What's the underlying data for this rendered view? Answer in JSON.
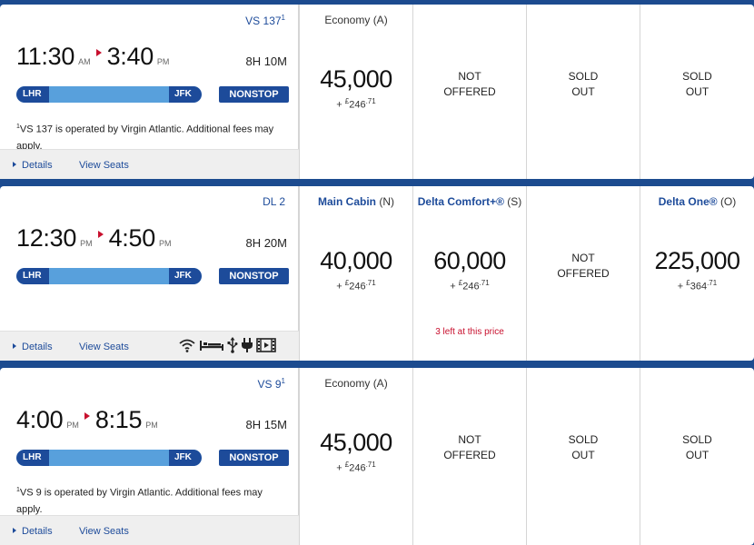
{
  "flights": [
    {
      "flight_no": "VS 137",
      "flight_no_sup": "1",
      "dep_time": "11:30",
      "dep_ampm": "AM",
      "arr_time": "3:40",
      "arr_ampm": "PM",
      "duration": "8H 10M",
      "from": "LHR",
      "to": "JFK",
      "nonstop": "NONSTOP",
      "note_sup": "1",
      "note_prefix": "VS 137 is operated by ",
      "note_carrier": "Virgin Atlantic",
      "note_suffix": ". Additional fees may apply.",
      "details": "Details",
      "view_seats": "View Seats",
      "fares": [
        {
          "name": "Economy",
          "code": "(A)",
          "miles": "45,000",
          "tax_prefix": "+ ",
          "currency": "£",
          "tax_whole": "246",
          "tax_cents": ".71"
        },
        {
          "status_line1": "NOT",
          "status_line2": "OFFERED"
        },
        {
          "status_line1": "SOLD",
          "status_line2": "OUT"
        },
        {
          "status_line1": "SOLD",
          "status_line2": "OUT"
        }
      ]
    },
    {
      "flight_no": "DL 2",
      "flight_no_sup": "",
      "dep_time": "12:30",
      "dep_ampm": "PM",
      "arr_time": "4:50",
      "arr_ampm": "PM",
      "duration": "8H 20M",
      "from": "LHR",
      "to": "JFK",
      "nonstop": "NONSTOP",
      "details": "Details",
      "view_seats": "View Seats",
      "amenities": [
        "wifi-icon",
        "flat-bed-icon",
        "usb-power-icon",
        "ac-power-icon",
        "entertainment-icon"
      ],
      "fares": [
        {
          "name": "Main Cabin",
          "code": "(N)",
          "miles": "40,000",
          "tax_prefix": "+ ",
          "currency": "£",
          "tax_whole": "246",
          "tax_cents": ".71"
        },
        {
          "name": "Delta Comfort+®",
          "code": "(S)",
          "miles": "60,000",
          "tax_prefix": "+ ",
          "currency": "£",
          "tax_whole": "246",
          "tax_cents": ".71",
          "seats_left": "3 left at this price"
        },
        {
          "status_line1": "NOT",
          "status_line2": "OFFERED"
        },
        {
          "name": "Delta One®",
          "code": "(O)",
          "miles": "225,000",
          "tax_prefix": "+ ",
          "currency": "£",
          "tax_whole": "364",
          "tax_cents": ".71"
        }
      ]
    },
    {
      "flight_no": "VS 9",
      "flight_no_sup": "1",
      "dep_time": "4:00",
      "dep_ampm": "PM",
      "arr_time": "8:15",
      "arr_ampm": "PM",
      "duration": "8H 15M",
      "from": "LHR",
      "to": "JFK",
      "nonstop": "NONSTOP",
      "note_sup": "1",
      "note_prefix": "VS 9 is operated by ",
      "note_carrier": "Virgin Atlantic",
      "note_suffix": ". Additional fees may apply.",
      "details": "Details",
      "view_seats": "View Seats",
      "fares": [
        {
          "name": "Economy",
          "code": "(A)",
          "miles": "45,000",
          "tax_prefix": "+ ",
          "currency": "£",
          "tax_whole": "246",
          "tax_cents": ".71"
        },
        {
          "status_line1": "NOT",
          "status_line2": "OFFERED"
        },
        {
          "status_line1": "SOLD",
          "status_line2": "OUT"
        },
        {
          "status_line1": "SOLD",
          "status_line2": "OUT"
        }
      ]
    }
  ]
}
